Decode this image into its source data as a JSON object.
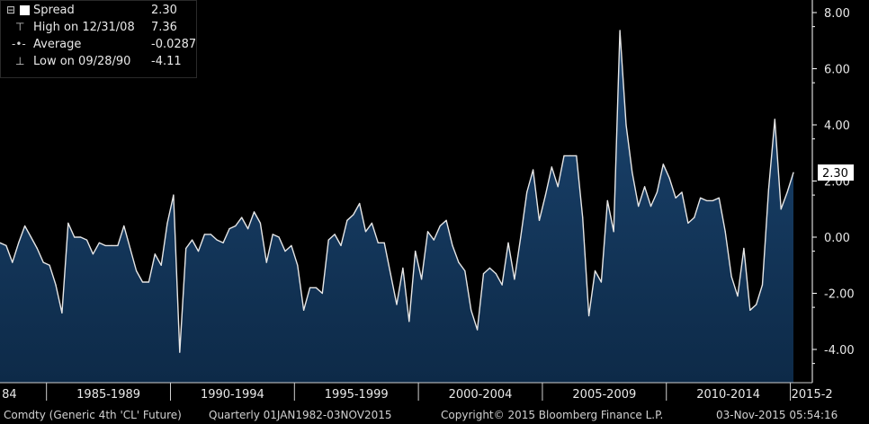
{
  "legend": {
    "spread": {
      "label": "Spread",
      "value": "2.30"
    },
    "high": {
      "label": "High on 12/31/08",
      "value": "7.36"
    },
    "average": {
      "label": "Average",
      "value": "-0.0287"
    },
    "low": {
      "label": "Low on 09/28/90",
      "value": "-4.11"
    }
  },
  "footer": {
    "security": "Comdty (Generic 4th 'CL' Future)",
    "range": "Quarterly 01JAN1982-03NOV2015",
    "copyright": "Copyright© 2015 Bloomberg Finance L.P.",
    "timestamp": "03-Nov-2015 05:54:16"
  },
  "colors": {
    "background": "#000000",
    "fill": "#0d2a48",
    "line": "#e6e6e6",
    "axis": "#ffffff"
  },
  "chart_data": {
    "type": "area",
    "x_tick_labels": [
      "84",
      "1985-1989",
      "1990-1994",
      "1995-1999",
      "2000-2004",
      "2005-2009",
      "2010-2014",
      "2015-2"
    ],
    "y_ticks": [
      8.0,
      6.0,
      4.0,
      2.0,
      0.0,
      -2.0,
      -4.0
    ],
    "y_tick_labels": [
      "8.00",
      "6.00",
      "4.00",
      "2.00",
      "0.00",
      "-2.00",
      "-4.00"
    ],
    "ylim": [
      -5.2,
      8.3
    ],
    "last_value_label": "2.30",
    "grid": false,
    "series": [
      {
        "name": "Spread",
        "x_start": "1982Q1",
        "frequency": "quarterly",
        "values": [
          -0.2,
          -0.3,
          -0.9,
          -0.2,
          0.4,
          0.0,
          -0.4,
          -0.9,
          -1.0,
          -1.7,
          -2.7,
          0.5,
          0.0,
          0.0,
          -0.1,
          -0.6,
          -0.2,
          -0.3,
          -0.3,
          -0.3,
          0.4,
          -0.4,
          -1.2,
          -1.6,
          -1.6,
          -0.6,
          -1.0,
          0.5,
          1.5,
          -4.1,
          -0.4,
          -0.1,
          -0.5,
          0.1,
          0.1,
          -0.1,
          -0.2,
          0.3,
          0.4,
          0.7,
          0.3,
          0.9,
          0.5,
          -0.9,
          0.1,
          0.0,
          -0.5,
          -0.3,
          -1.0,
          -2.6,
          -1.8,
          -1.8,
          -2.0,
          -0.1,
          0.1,
          -0.3,
          0.6,
          0.8,
          1.2,
          0.2,
          0.5,
          -0.2,
          -0.2,
          -1.3,
          -2.4,
          -1.1,
          -3.0,
          -0.5,
          -1.5,
          0.2,
          -0.1,
          0.4,
          0.6,
          -0.3,
          -0.9,
          -1.2,
          -2.6,
          -3.3,
          -1.3,
          -1.1,
          -1.3,
          -1.7,
          -0.2,
          -1.5,
          0.0,
          1.6,
          2.4,
          0.6,
          1.5,
          2.5,
          1.8,
          2.9,
          2.9,
          2.9,
          0.7,
          -2.8,
          -1.2,
          -1.6,
          1.3,
          0.2,
          7.36,
          4.0,
          2.3,
          1.1,
          1.8,
          1.1,
          1.6,
          2.6,
          2.1,
          1.4,
          1.6,
          0.5,
          0.7,
          1.4,
          1.3,
          1.3,
          1.4,
          0.2,
          -1.4,
          -2.1,
          -0.4,
          -2.6,
          -2.4,
          -1.7,
          1.7,
          4.2,
          1.0,
          1.6,
          2.3
        ]
      }
    ]
  }
}
